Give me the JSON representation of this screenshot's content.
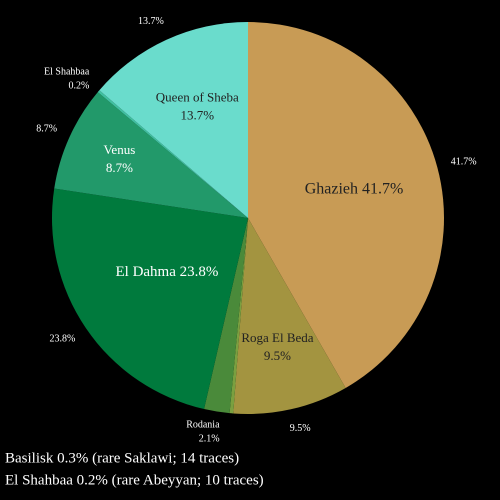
{
  "chart_data": {
    "type": "pie",
    "categories": [
      "Ghazieh",
      "Roga El Beda",
      "Basilisk",
      "Rodania",
      "El Dahma",
      "Venus",
      "El Shahbaa",
      "Queen of Sheba"
    ],
    "values": [
      41.7,
      9.5,
      0.3,
      2.1,
      23.8,
      8.7,
      0.2,
      13.7
    ],
    "value_labels": [
      "41.7%",
      "9.5%",
      "0.3%",
      "2.1%",
      "23.8%",
      "8.7%",
      "0.2%",
      "13.7%"
    ],
    "colors": [
      "#c89b55",
      "#a39440",
      "#7aa040",
      "#4a8a3a",
      "#007a3d",
      "#22996a",
      "#40c0a0",
      "#6adccc"
    ],
    "notes": [
      "Basilisk 0.3% (rare Saklawi; 14 traces)",
      "El Shahbaa 0.2% (rare Abeyyan; 10 traces)"
    ]
  }
}
